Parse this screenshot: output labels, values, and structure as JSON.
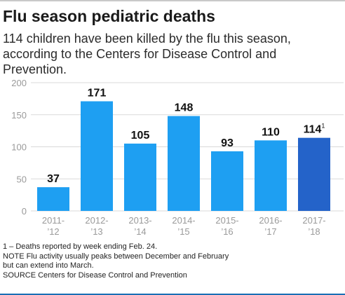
{
  "header": {
    "title": "Flu season pediatric deaths",
    "subtitle": "114 children have been killed by the flu this season, according to the Centers for Disease Control and Prevention."
  },
  "chart_data": {
    "type": "bar",
    "title": "Flu season pediatric deaths",
    "xlabel": "",
    "ylabel": "",
    "ylim": [
      0,
      200
    ],
    "yticks": [
      0,
      50,
      100,
      150,
      200
    ],
    "grid": true,
    "categories": [
      [
        "2011-",
        "’12"
      ],
      [
        "2012-",
        "’13"
      ],
      [
        "2013-",
        "’14"
      ],
      [
        "2014-",
        "’15"
      ],
      [
        "2015-",
        "’16"
      ],
      [
        "2016-",
        "’17"
      ],
      [
        "2017-",
        "’18"
      ]
    ],
    "values": [
      37,
      171,
      105,
      148,
      93,
      110,
      114
    ],
    "data_labels": [
      "37",
      "171",
      "105",
      "148",
      "93",
      "110",
      "114"
    ],
    "footnote_marks": [
      "",
      "",
      "",
      "",
      "",
      "",
      "1"
    ],
    "colors": {
      "bar": "#1e9ff2",
      "highlight_bar": "#2463c9",
      "grid": "#d9d9d9",
      "tick": "#9a9a9a"
    },
    "highlight_index": 6
  },
  "notes": {
    "footnote": "1 – Deaths reported by week ending Feb. 24.",
    "note_line1": "NOTE Flu activity usually peaks between December and February",
    "note_line2": "but can extend into March.",
    "source": "SOURCE  Centers for Disease Control and Prevention"
  }
}
